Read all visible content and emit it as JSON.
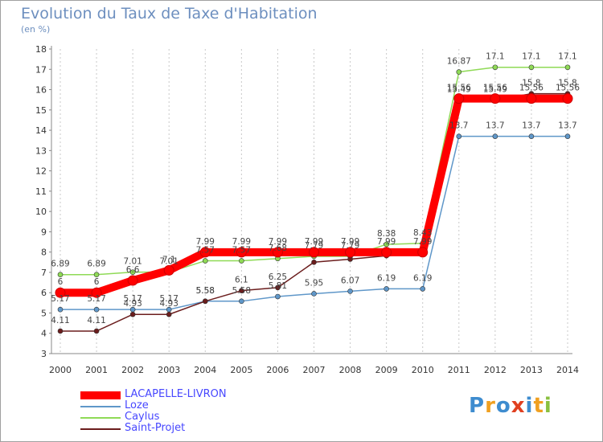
{
  "chart_data": {
    "type": "line",
    "title": "Evolution du Taux de Taxe d'Habitation",
    "subtitle": "(en %)",
    "x": [
      2000,
      2001,
      2002,
      2003,
      2004,
      2005,
      2006,
      2007,
      2008,
      2009,
      2010,
      2011,
      2012,
      2013,
      2014
    ],
    "ylim": [
      3,
      18
    ],
    "yticks": [
      3,
      4,
      5,
      6,
      7,
      8,
      9,
      10,
      11,
      12,
      13,
      14,
      15,
      16,
      17,
      18
    ],
    "grid": "vertical-dashed",
    "legend": "bottom-left",
    "series": [
      {
        "name": "LACAPELLE-LIVRON",
        "color": "#ff0000",
        "values": [
          6,
          6,
          6.6,
          7.1,
          7.99,
          7.99,
          7.99,
          7.99,
          7.99,
          7.99,
          7.99,
          15.56,
          15.56,
          15.56,
          15.56
        ],
        "labels": [
          "6",
          "6",
          "6.6",
          "7.1",
          "7.99",
          "7.99",
          "7.99",
          "7.99",
          "7.99",
          "7.99",
          "7.99",
          "15.56",
          "15.56",
          "15.56",
          "15.56"
        ]
      },
      {
        "name": "Loze",
        "color": "#5f97c9",
        "values": [
          5.17,
          5.17,
          5.17,
          5.17,
          5.58,
          5.58,
          5.81,
          5.95,
          6.07,
          6.19,
          6.19,
          13.7,
          13.7,
          13.7,
          13.7
        ],
        "labels": [
          "5.17",
          "5.17",
          "5.17",
          "5.17",
          "5.58",
          "5.58",
          "5.81",
          "5.95",
          "6.07",
          "6.19",
          "6.19",
          "13.7",
          "13.7",
          "13.7",
          "13.7"
        ]
      },
      {
        "name": "Caylus",
        "color": "#8fda56",
        "values": [
          6.89,
          6.89,
          7.01,
          7.01,
          7.57,
          7.57,
          7.68,
          7.79,
          7.79,
          8.38,
          8.43,
          16.87,
          17.1,
          17.1,
          17.1
        ],
        "labels": [
          "6.89",
          "6.89",
          "7.01",
          "7.01",
          "7.57",
          "7.57",
          "7.68",
          "7.79",
          "7.79",
          "8.38",
          "8.43",
          "16.87",
          "17.1",
          "17.1",
          "17.1"
        ]
      },
      {
        "name": "Saint-Projet",
        "color": "#6b1d1d",
        "values": [
          4.11,
          4.11,
          4.93,
          4.93,
          5.58,
          6.1,
          6.25,
          7.5,
          7.65,
          7.82,
          7.92,
          15.49,
          15.49,
          15.8,
          15.8
        ],
        "labels": [
          "4.11",
          "4.11",
          "4.93",
          "4.93",
          "5.58",
          "6.1",
          "6.25",
          "",
          "",
          "",
          "",
          "15.49",
          "15.49",
          "15.8",
          "15.8"
        ]
      }
    ]
  },
  "logo": {
    "letters": [
      "P",
      "r",
      "o",
      "x",
      "i",
      "t",
      "i"
    ],
    "colors": [
      "#3e8ccf",
      "#f0a020",
      "#3e8ccf",
      "#e04020",
      "#3e8ccf",
      "#f0a020",
      "#8ac040"
    ]
  }
}
